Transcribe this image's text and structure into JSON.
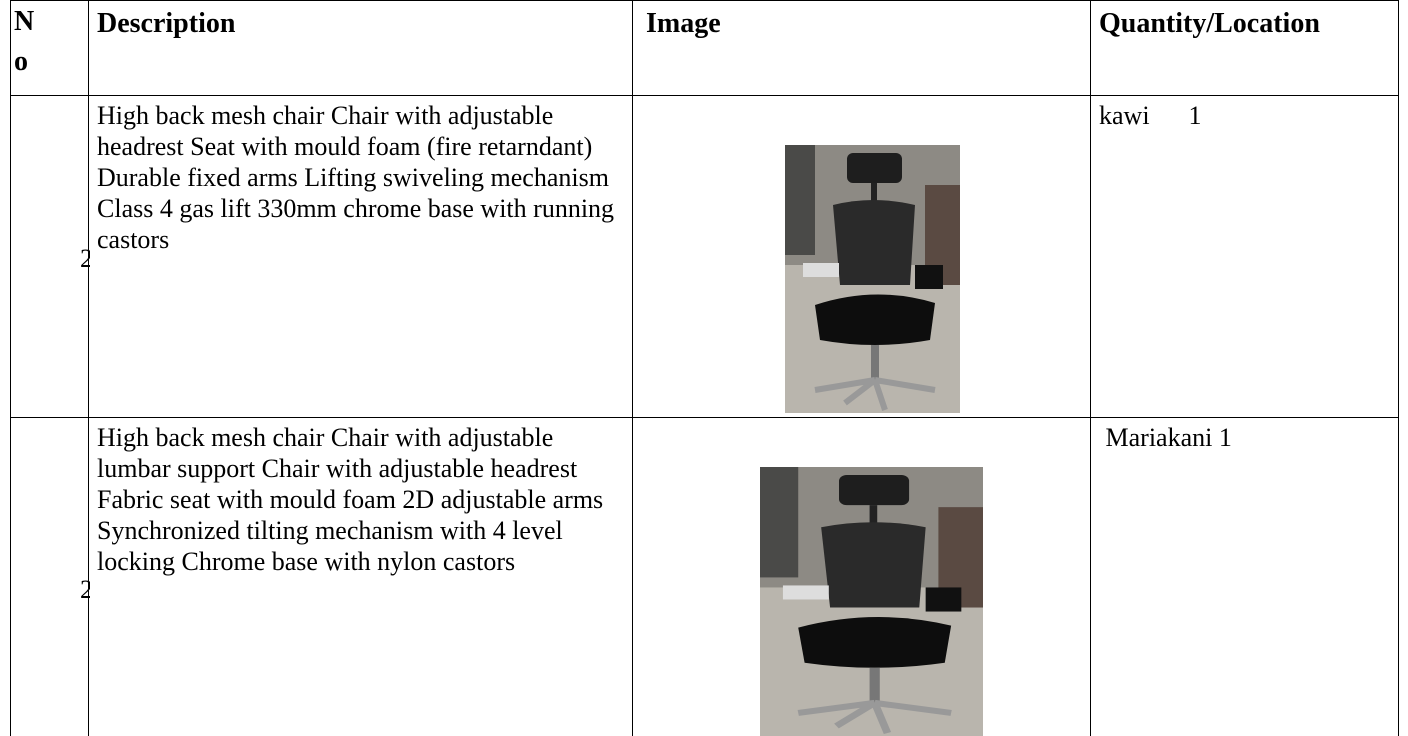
{
  "table": {
    "header": [
      "No",
      "Description",
      "Image",
      "Quantity/Location"
    ],
    "rows": [
      {
        "no": "2",
        "description": "High back mesh chair  Chair with adjustable headrest Seat with mould foam (fire retarndant) Durable fixed arms Lifting swiveling mechanism  Class 4 gas lift  330mm chrome base with running castors",
        "quantity": "kawi      1"
      },
      {
        "no": "2",
        "description": "High back mesh chair  Chair with adjustable lumbar support Chair with adjustable headrest Fabric seat with mould foam 2D adjustable arms Synchronized tilting mechanism with 4 level locking   Chrome base with nylon castors",
        "quantity": " Mariakani 1"
      }
    ]
  }
}
